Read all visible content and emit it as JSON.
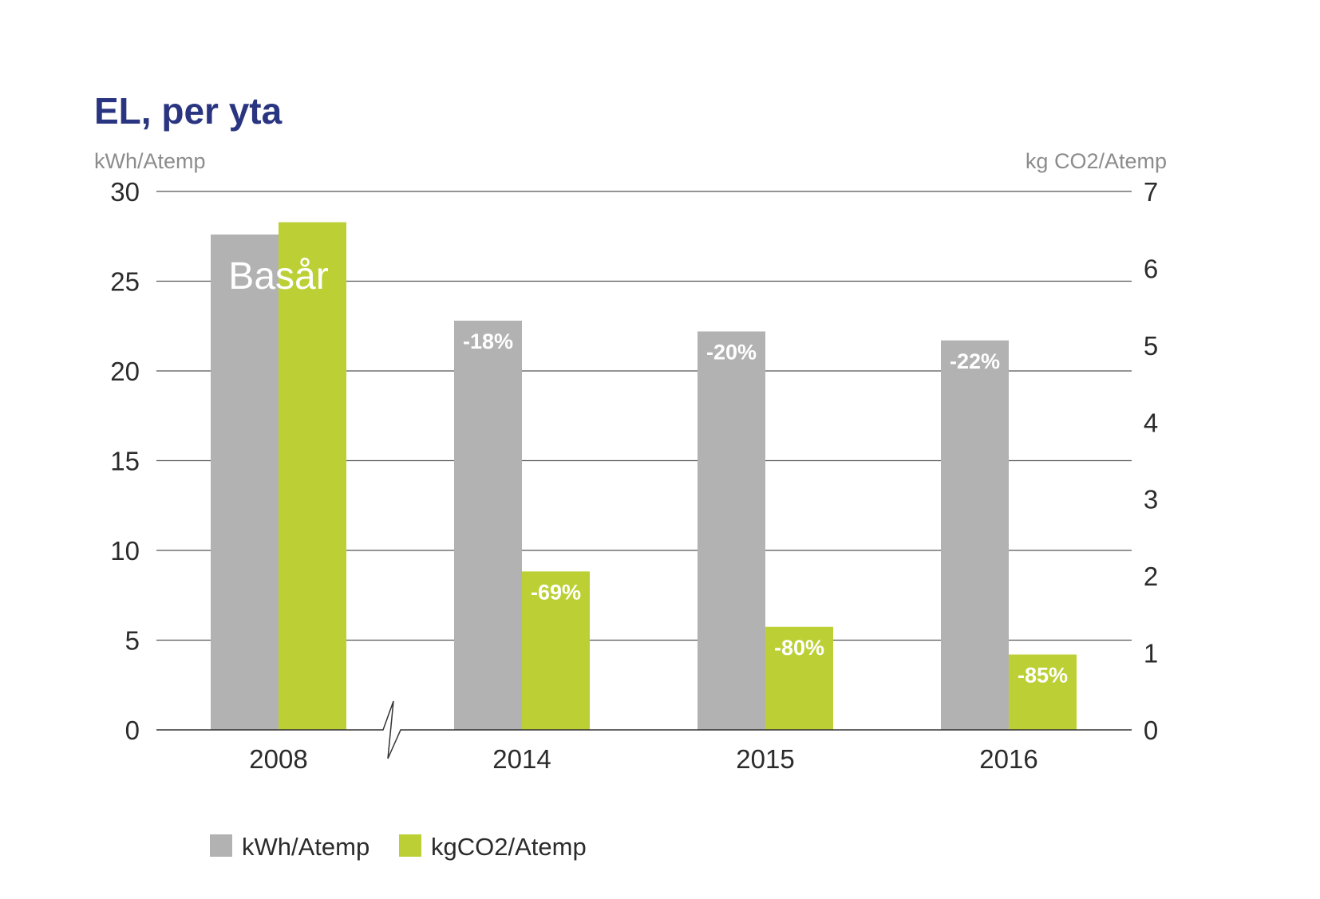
{
  "chart_data": {
    "type": "bar",
    "title": "EL, per yta",
    "ylabel_left": "kWh/Atemp",
    "ylabel_right": "kg CO2/Atemp",
    "ylim_left": [
      0,
      30
    ],
    "ylim_right": [
      0,
      7
    ],
    "yticks_left": [
      "0",
      "5",
      "10",
      "15",
      "20",
      "25",
      "30"
    ],
    "yticks_right": [
      "0",
      "1",
      "2",
      "3",
      "4",
      "5",
      "6",
      "7"
    ],
    "categories": [
      "2008",
      "2014",
      "2015",
      "2016"
    ],
    "axis_break_after": "2008",
    "series": [
      {
        "name": "kWh/Atemp",
        "axis": "left",
        "color": "#b2b2b2",
        "values": [
          27.6,
          22.8,
          22.2,
          21.7
        ],
        "labels": [
          "Basår",
          "-18%",
          "-20%",
          "-22%"
        ]
      },
      {
        "name": "kgCO2/Atemp",
        "axis": "right",
        "color": "#bcd035",
        "values": [
          6.6,
          2.06,
          1.34,
          0.98
        ],
        "labels": [
          "",
          "-69%",
          "-80%",
          "-85%"
        ]
      }
    ],
    "legend": {
      "position": "bottom-left",
      "entries": [
        "kWh/Atemp",
        "kgCO2/Atemp"
      ]
    },
    "grid": true
  }
}
